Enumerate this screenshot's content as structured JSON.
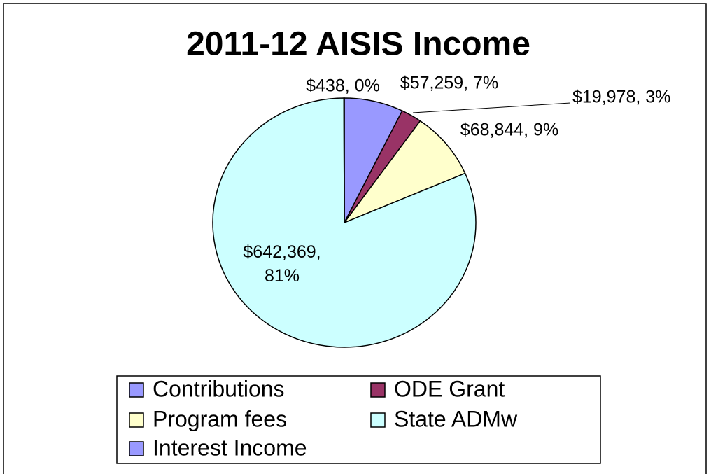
{
  "chart_data": {
    "type": "pie",
    "title": "2011-12 AISIS Income",
    "categories": [
      "Contributions",
      "ODE Grant",
      "Program fees",
      "State ADMw",
      "Interest Income"
    ],
    "values": [
      57259,
      19978,
      68844,
      642369,
      438
    ],
    "value_labels": [
      "$57,259, 7%",
      "$19,978, 3%",
      "$68,844, 9%",
      "$642,369, 81%",
      "$438, 0%"
    ],
    "colors": [
      "#9999ff",
      "#993366",
      "#ffffcc",
      "#ccffff",
      "#9999ff"
    ],
    "legend": "bottom"
  }
}
